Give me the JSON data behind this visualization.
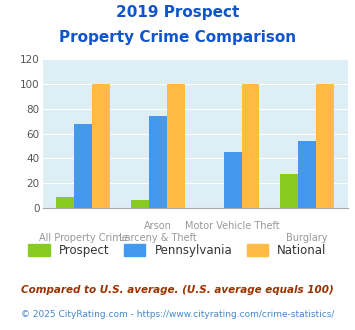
{
  "title_line1": "2019 Prospect",
  "title_line2": "Property Crime Comparison",
  "cat_labels_top": [
    "",
    "Arson",
    "Motor Vehicle Theft",
    ""
  ],
  "cat_labels_bottom": [
    "All Property Crime",
    "Larceny & Theft",
    "",
    "Burglary"
  ],
  "prospect": [
    9,
    6,
    0,
    27
  ],
  "pennsylvania": [
    68,
    74,
    45,
    54
  ],
  "national": [
    100,
    100,
    100,
    100
  ],
  "prospect_color": "#88cc22",
  "pennsylvania_color": "#4499ee",
  "national_color": "#ffbb44",
  "ylim": [
    0,
    120
  ],
  "yticks": [
    0,
    20,
    40,
    60,
    80,
    100,
    120
  ],
  "bg_color": "#ddeef5",
  "title_color": "#1155cc",
  "legend_labels": [
    "Prospect",
    "Pennsylvania",
    "National"
  ],
  "footnote1": "Compared to U.S. average. (U.S. average equals 100)",
  "footnote2": "© 2025 CityRating.com - https://www.cityrating.com/crime-statistics/",
  "footnote1_color": "#993300",
  "footnote2_color": "#4488cc"
}
